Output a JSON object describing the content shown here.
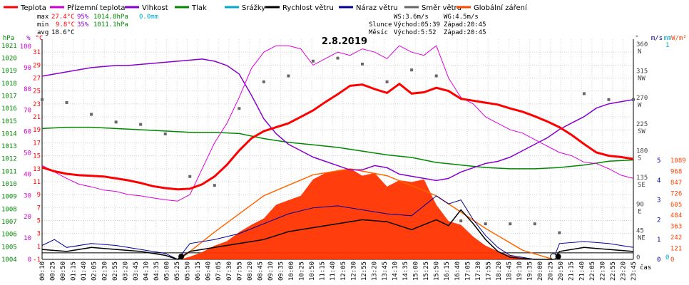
{
  "chart_data": {
    "type": "line",
    "title": "2.8.2019",
    "legend": [
      {
        "name": "Teplota",
        "color": "#ff0000"
      },
      {
        "name": "Přízemní teplota",
        "color": "#cc00cc"
      },
      {
        "name": "Vlhkost",
        "color": "#8800cc"
      },
      {
        "name": "Tlak",
        "color": "#008800"
      },
      {
        "name": "Srážky",
        "color": "#00aacc"
      },
      {
        "name": "Rychlost větru",
        "color": "#000000"
      },
      {
        "name": "Náraz větru",
        "color": "#000099"
      },
      {
        "name": "Směr větru",
        "color": "#666666"
      },
      {
        "name": "Globální záření",
        "color": "#ff4400"
      }
    ],
    "stats": {
      "max_label": "max",
      "min_label": "min",
      "avg_label": "avg",
      "max_temp": "27.4°C",
      "max_hum": "95%",
      "max_press": "1014.8hPa",
      "max_rain": "0.0mm",
      "min_temp": "9.8°C",
      "min_hum": "35%",
      "min_press": "1011.1hPa",
      "avg_temp": "18.6°C"
    },
    "astro": {
      "ws": "WS:3.6m/s",
      "wg": "WG:4.5m/s",
      "sun_label": "Slunce",
      "moon_label": "Měsíc",
      "sunrise": "Východ:05:39",
      "sunset": "Západ:20:45",
      "moonrise": "Východ:5:52",
      "moonset": "Západ:20:45"
    },
    "axes": {
      "hpa_unit": "hPa",
      "pct_unit": "%",
      "c_unit": "°C",
      "dir_unit": "°",
      "ms_unit": "m/s",
      "mm_unit": "mm",
      "wm_unit": "W/m²",
      "time_label": "čas",
      "hpa_ticks": [
        "1021",
        "1020",
        "1019",
        "1018",
        "1017",
        "1016",
        "1015",
        "1014",
        "1013",
        "1012",
        "1011",
        "1010",
        "1009",
        "1008",
        "1007",
        "1006",
        "1005",
        "1004"
      ],
      "pct_ticks": [
        "100",
        "90",
        "80",
        "70",
        "60",
        "50",
        "40",
        "30",
        "20",
        "10",
        "0"
      ],
      "c_ticks": [
        "31",
        "29",
        "27",
        "25",
        "23",
        "21",
        "19",
        "17",
        "15",
        "13",
        "11",
        "9",
        "7",
        "5",
        "3",
        "1",
        "-1"
      ],
      "dir_ticks": [
        {
          "deg": "360",
          "name": "N"
        },
        {
          "deg": "315",
          "name": "NW"
        },
        {
          "deg": "270",
          "name": "W"
        },
        {
          "deg": "225",
          "name": "SW"
        },
        {
          "deg": "180",
          "name": "S"
        },
        {
          "deg": "135",
          "name": "SE"
        },
        {
          "deg": "90",
          "name": "E"
        },
        {
          "deg": "45",
          "name": "NE"
        },
        {
          "deg": "0",
          "name": ""
        }
      ],
      "ms_ticks": [
        "5",
        "4",
        "3",
        "2",
        "1",
        "0"
      ],
      "mm_ticks": [
        "1",
        "0"
      ],
      "wm_ticks": [
        "1089",
        "968",
        "847",
        "726",
        "605",
        "484",
        "363",
        "242",
        "121",
        "0"
      ],
      "time_ticks": [
        "00:10",
        "00:25",
        "00:50",
        "01:15",
        "01:40",
        "02:05",
        "02:30",
        "02:55",
        "03:20",
        "03:45",
        "04:10",
        "04:35",
        "05:00",
        "05:25",
        "05:50",
        "06:15",
        "06:40",
        "07:05",
        "07:30",
        "07:55",
        "08:20",
        "08:45",
        "09:10",
        "09:35",
        "10:00",
        "10:25",
        "10:50",
        "11:15",
        "11:40",
        "12:05",
        "12:30",
        "12:55",
        "13:20",
        "13:45",
        "14:10",
        "14:35",
        "15:00",
        "15:25",
        "15:50",
        "16:15",
        "16:40",
        "17:05",
        "17:30",
        "17:55",
        "18:20",
        "18:45",
        "19:10",
        "19:35",
        "20:00",
        "20:25",
        "20:50",
        "21:15",
        "21:40",
        "22:05",
        "22:30",
        "22:55",
        "23:20",
        "23:45"
      ]
    },
    "series": {
      "temperature": [
        [
          0,
          13.2
        ],
        [
          0.5,
          12.6
        ],
        [
          1,
          12.2
        ],
        [
          1.5,
          12
        ],
        [
          2,
          11.9
        ],
        [
          2.5,
          11.8
        ],
        [
          3,
          11.5
        ],
        [
          3.5,
          11.2
        ],
        [
          4,
          10.8
        ],
        [
          4.5,
          10.3
        ],
        [
          5,
          10
        ],
        [
          5.5,
          9.8
        ],
        [
          6,
          9.9
        ],
        [
          6.5,
          10.6
        ],
        [
          7,
          11.8
        ],
        [
          7.5,
          13.6
        ],
        [
          8,
          15.8
        ],
        [
          8.5,
          17.7
        ],
        [
          9,
          18.8
        ],
        [
          9.5,
          19.4
        ],
        [
          10,
          20
        ],
        [
          10.5,
          21
        ],
        [
          11,
          22
        ],
        [
          11.5,
          23.3
        ],
        [
          12,
          24.5
        ],
        [
          12.5,
          25.8
        ],
        [
          13,
          26
        ],
        [
          13.5,
          25.3
        ],
        [
          14,
          24.7
        ],
        [
          14.5,
          26.1
        ],
        [
          15,
          24.6
        ],
        [
          15.5,
          24.8
        ],
        [
          16,
          25.5
        ],
        [
          16.5,
          25
        ],
        [
          17,
          23.8
        ],
        [
          17.5,
          23.5
        ],
        [
          18,
          23.2
        ],
        [
          18.5,
          22.9
        ],
        [
          19,
          22.3
        ],
        [
          19.5,
          21.8
        ],
        [
          20,
          21.1
        ],
        [
          20.5,
          20.3
        ],
        [
          21,
          19.4
        ],
        [
          21.5,
          18.2
        ],
        [
          22,
          16.8
        ],
        [
          22.5,
          15.5
        ],
        [
          23,
          15
        ],
        [
          23.5,
          14.8
        ],
        [
          24,
          14.5
        ]
      ],
      "ground_temp": [
        [
          0,
          13.5
        ],
        [
          0.5,
          12.5
        ],
        [
          1,
          11.5
        ],
        [
          1.5,
          10.6
        ],
        [
          2,
          10.2
        ],
        [
          2.5,
          9.7
        ],
        [
          3,
          9.5
        ],
        [
          3.5,
          9
        ],
        [
          4,
          8.8
        ],
        [
          4.5,
          8.5
        ],
        [
          5,
          8.2
        ],
        [
          5.5,
          8
        ],
        [
          6,
          9
        ],
        [
          6.5,
          13
        ],
        [
          7,
          17
        ],
        [
          7.5,
          20
        ],
        [
          8,
          24
        ],
        [
          8.5,
          28.5
        ],
        [
          9,
          31
        ],
        [
          9.5,
          32
        ],
        [
          10,
          32
        ],
        [
          10.5,
          31.5
        ],
        [
          11,
          29
        ],
        [
          11.5,
          30
        ],
        [
          12,
          31
        ],
        [
          12.5,
          30.5
        ],
        [
          13,
          31.5
        ],
        [
          13.5,
          31
        ],
        [
          14,
          30
        ],
        [
          14.5,
          32
        ],
        [
          15,
          31
        ],
        [
          15.5,
          30.5
        ],
        [
          16,
          32
        ],
        [
          16.5,
          27
        ],
        [
          17,
          24
        ],
        [
          17.5,
          23
        ],
        [
          18,
          21
        ],
        [
          18.5,
          20
        ],
        [
          19,
          19
        ],
        [
          19.5,
          18.5
        ],
        [
          20,
          17.5
        ],
        [
          20.5,
          16.5
        ],
        [
          21,
          15.5
        ],
        [
          21.5,
          15
        ],
        [
          22,
          14
        ],
        [
          22.5,
          13.8
        ],
        [
          23,
          13
        ],
        [
          23.5,
          12
        ],
        [
          24,
          11.5
        ]
      ],
      "humidity": [
        [
          0,
          86
        ],
        [
          0.5,
          87
        ],
        [
          1,
          88
        ],
        [
          1.5,
          89
        ],
        [
          2,
          90
        ],
        [
          2.5,
          90.5
        ],
        [
          3,
          91
        ],
        [
          3.5,
          91
        ],
        [
          4,
          91.5
        ],
        [
          4.5,
          92
        ],
        [
          5,
          92.5
        ],
        [
          5.5,
          93
        ],
        [
          6,
          93.5
        ],
        [
          6.5,
          94
        ],
        [
          7,
          93
        ],
        [
          7.5,
          91
        ],
        [
          8,
          87
        ],
        [
          8.5,
          77
        ],
        [
          9,
          66
        ],
        [
          9.5,
          59
        ],
        [
          10,
          54
        ],
        [
          10.5,
          51
        ],
        [
          11,
          48
        ],
        [
          11.5,
          46
        ],
        [
          12,
          44
        ],
        [
          12.5,
          42
        ],
        [
          13,
          42
        ],
        [
          13.5,
          44
        ],
        [
          14,
          43
        ],
        [
          14.5,
          40
        ],
        [
          15,
          39
        ],
        [
          15.5,
          38
        ],
        [
          16,
          37
        ],
        [
          16.5,
          38
        ],
        [
          17,
          41
        ],
        [
          17.5,
          43
        ],
        [
          18,
          45
        ],
        [
          18.5,
          46
        ],
        [
          19,
          48
        ],
        [
          19.5,
          51
        ],
        [
          20,
          54
        ],
        [
          20.5,
          57
        ],
        [
          21,
          61
        ],
        [
          21.5,
          64
        ],
        [
          22,
          67
        ],
        [
          22.5,
          71
        ],
        [
          23,
          73
        ],
        [
          23.5,
          74
        ],
        [
          24,
          75
        ]
      ],
      "pressure": [
        [
          0,
          1014.4
        ],
        [
          1,
          1014.5
        ],
        [
          2,
          1014.5
        ],
        [
          3,
          1014.4
        ],
        [
          4,
          1014.3
        ],
        [
          5,
          1014.2
        ],
        [
          6,
          1014.1
        ],
        [
          7,
          1014.1
        ],
        [
          8,
          1014
        ],
        [
          9,
          1013.6
        ],
        [
          10,
          1013.3
        ],
        [
          11,
          1013.1
        ],
        [
          12,
          1012.9
        ],
        [
          13,
          1012.6
        ],
        [
          14,
          1012.3
        ],
        [
          15,
          1012.1
        ],
        [
          16,
          1011.7
        ],
        [
          17,
          1011.5
        ],
        [
          18,
          1011.3
        ],
        [
          19,
          1011.2
        ],
        [
          20,
          1011.2
        ],
        [
          21,
          1011.3
        ],
        [
          22,
          1011.5
        ],
        [
          23,
          1011.8
        ],
        [
          24,
          1011.9
        ]
      ],
      "wind_speed": [
        [
          0,
          0.5
        ],
        [
          1,
          0.4
        ],
        [
          2,
          0.6
        ],
        [
          3,
          0.5
        ],
        [
          4,
          0.4
        ],
        [
          5,
          0.2
        ],
        [
          5.5,
          0
        ],
        [
          6,
          0.4
        ],
        [
          7,
          0.6
        ],
        [
          8,
          0.8
        ],
        [
          9,
          1
        ],
        [
          10,
          1.4
        ],
        [
          11,
          1.6
        ],
        [
          12,
          1.8
        ],
        [
          13,
          2
        ],
        [
          14,
          1.9
        ],
        [
          15,
          1.5
        ],
        [
          16,
          2
        ],
        [
          16.5,
          1.7
        ],
        [
          17,
          2.5
        ],
        [
          17.5,
          1.8
        ],
        [
          18,
          1
        ],
        [
          18.5,
          0.4
        ],
        [
          19,
          0.1
        ],
        [
          20,
          0
        ],
        [
          20.75,
          0
        ],
        [
          21,
          0.4
        ],
        [
          22,
          0.6
        ],
        [
          23,
          0.5
        ],
        [
          24,
          0.4
        ]
      ],
      "wind_gust": [
        [
          0,
          0.7
        ],
        [
          0.5,
          1
        ],
        [
          1,
          0.6
        ],
        [
          2,
          0.8
        ],
        [
          3,
          0.7
        ],
        [
          4,
          0.5
        ],
        [
          5,
          0.3
        ],
        [
          5.5,
          0
        ],
        [
          6,
          0.8
        ],
        [
          7,
          1
        ],
        [
          8,
          1.3
        ],
        [
          9,
          1.8
        ],
        [
          10,
          2.3
        ],
        [
          11,
          2.6
        ],
        [
          12,
          2.7
        ],
        [
          13,
          2.5
        ],
        [
          14,
          2.3
        ],
        [
          15,
          2.2
        ],
        [
          16,
          3.2
        ],
        [
          16.5,
          2.8
        ],
        [
          17,
          3
        ],
        [
          17.5,
          2
        ],
        [
          18,
          1.2
        ],
        [
          18.5,
          0.6
        ],
        [
          19,
          0.2
        ],
        [
          20,
          0
        ],
        [
          20.75,
          0
        ],
        [
          21,
          0.8
        ],
        [
          22,
          0.9
        ],
        [
          23,
          0.8
        ],
        [
          24,
          0.6
        ]
      ],
      "radiation": [
        [
          5.6,
          0
        ],
        [
          6,
          30
        ],
        [
          6.5,
          80
        ],
        [
          7,
          150
        ],
        [
          7.5,
          200
        ],
        [
          8,
          300
        ],
        [
          8.5,
          380
        ],
        [
          9,
          450
        ],
        [
          9.5,
          600
        ],
        [
          10,
          650
        ],
        [
          10.5,
          700
        ],
        [
          11,
          880
        ],
        [
          11.5,
          950
        ],
        [
          12,
          980
        ],
        [
          12.5,
          1000
        ],
        [
          13,
          920
        ],
        [
          13.5,
          950
        ],
        [
          14,
          800
        ],
        [
          14.5,
          870
        ],
        [
          15,
          850
        ],
        [
          15.5,
          880
        ],
        [
          16,
          600
        ],
        [
          16.5,
          420
        ],
        [
          17,
          380
        ],
        [
          17.5,
          250
        ],
        [
          18,
          150
        ],
        [
          18.5,
          90
        ],
        [
          19,
          40
        ],
        [
          19.5,
          15
        ],
        [
          20,
          5
        ],
        [
          20.75,
          0
        ]
      ],
      "clear_sky_radiation": [
        [
          5.6,
          0
        ],
        [
          7,
          300
        ],
        [
          9,
          700
        ],
        [
          11,
          930
        ],
        [
          12.5,
          995
        ],
        [
          14,
          920
        ],
        [
          16,
          700
        ],
        [
          18,
          340
        ],
        [
          19.5,
          100
        ],
        [
          20.75,
          0
        ]
      ],
      "wind_dir": [
        [
          0,
          270
        ],
        [
          1,
          265
        ],
        [
          2,
          245
        ],
        [
          3,
          232
        ],
        [
          4,
          228
        ],
        [
          5,
          212
        ],
        [
          6,
          140
        ],
        [
          7,
          125
        ],
        [
          8,
          255
        ],
        [
          9,
          300
        ],
        [
          10,
          310
        ],
        [
          11,
          335
        ],
        [
          12,
          340
        ],
        [
          13,
          330
        ],
        [
          14,
          300
        ],
        [
          15,
          320
        ],
        [
          16,
          310
        ],
        [
          17,
          65
        ],
        [
          18,
          60
        ],
        [
          19,
          60
        ],
        [
          20,
          60
        ],
        [
          21,
          45
        ],
        [
          22,
          280
        ],
        [
          23,
          270
        ],
        [
          24,
          270
        ]
      ]
    }
  }
}
